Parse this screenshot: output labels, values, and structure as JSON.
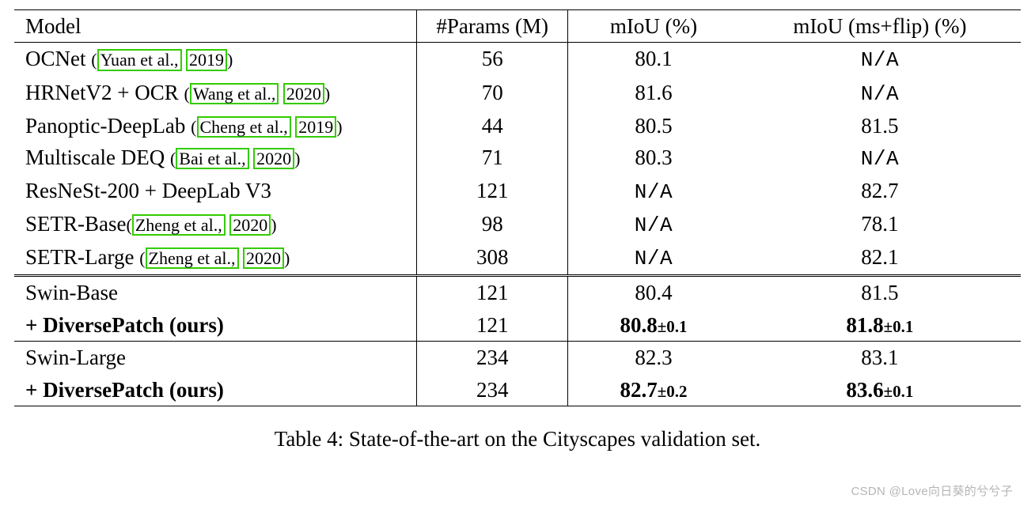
{
  "table": {
    "type": "table",
    "columns": [
      "Model",
      "#Params (M)",
      "mIoU (%)",
      "mIoU (ms+flip) (%)"
    ],
    "cite_box_color": "#33cc00",
    "na_text": "N/A",
    "groups": [
      {
        "rows": [
          {
            "model": "OCNet",
            "cite_a": "Yuan et al.,",
            "cite_b": "2019",
            "params": "56",
            "miou": "80.1",
            "miou_flip_na": true
          },
          {
            "model": "HRNetV2 + OCR",
            "cite_a": "Wang et al.,",
            "cite_b": "2020",
            "params": "70",
            "miou": "81.6",
            "miou_flip_na": true
          },
          {
            "model": "Panoptic-DeepLab",
            "cite_a": "Cheng et al.,",
            "cite_b": "2019",
            "params": "44",
            "miou": "80.5",
            "miou_flip": "81.5"
          },
          {
            "model": "Multiscale DEQ",
            "cite_a": "Bai et al.,",
            "cite_b": "2020",
            "params": "71",
            "miou": "80.3",
            "miou_flip_na": true
          },
          {
            "model": "ResNeSt-200 + DeepLab V3",
            "params": "121",
            "miou_na": true,
            "miou_flip": "82.7"
          },
          {
            "model": "SETR-Base",
            "cite_a": "Zheng et al.,",
            "cite_b": "2020",
            "cite_tight": true,
            "params": "98",
            "miou_na": true,
            "miou_flip": "78.1"
          },
          {
            "model": "SETR-Large",
            "cite_a": "Zheng et al.,",
            "cite_b": "2020",
            "params": "308",
            "miou_na": true,
            "miou_flip": "82.1"
          }
        ]
      },
      {
        "rule": "double",
        "rows": [
          {
            "model": "Swin-Base",
            "params": "121",
            "miou": "80.4",
            "miou_flip": "81.5"
          },
          {
            "model_bold": "+ DiversePatch (ours)",
            "params": "121",
            "miou_bold": "80.8",
            "miou_pm": "±0.1",
            "miou_flip_bold": "81.8",
            "miou_flip_pm": "±0.1"
          }
        ]
      },
      {
        "rule": "thin",
        "rows": [
          {
            "model": "Swin-Large",
            "params": "234",
            "miou": "82.3",
            "miou_flip": "83.1"
          },
          {
            "model_bold": "+ DiversePatch (ours)",
            "params": "234",
            "miou_bold": "82.7",
            "miou_pm": "±0.2",
            "miou_flip_bold": "83.6",
            "miou_flip_pm": "±0.1"
          }
        ]
      }
    ]
  },
  "caption": "Table 4: State-of-the-art on the Cityscapes validation set.",
  "watermark": "CSDN @Love向日葵的兮兮子"
}
